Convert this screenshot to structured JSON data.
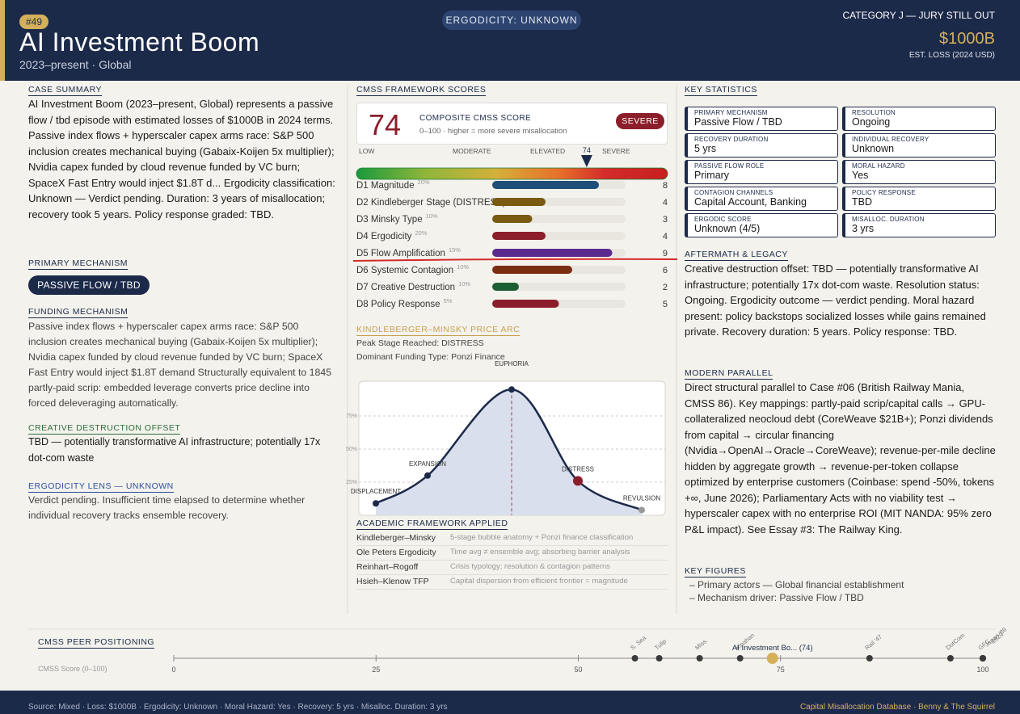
{
  "header": {
    "badge": "#49",
    "title": "AI Investment Boom",
    "subtitle": "2023–present · Global",
    "ergodicity_pill": "ERGODICITY: UNKNOWN",
    "category": "CATEGORY J — JURY STILL OUT",
    "loss": "$1000B",
    "loss_note": "EST. LOSS (2024 USD)"
  },
  "left": {
    "case_summary": {
      "heading": "CASE SUMMARY",
      "text": "AI Investment Boom (2023–present, Global) represents a passive flow / tbd episode with estimated losses of $1000B in 2024 terms. Passive index flows + hyperscaler capex arms race: S&P 500 inclusion creates mechanical buying (Gabaix-Koijen 5x multiplier); Nvidia capex funded by cloud revenue funded by VC burn; SpaceX Fast Entry would inject $1.8T d... Ergodicity classification: Unknown — Verdict pending. Duration: 3 years of misallocation; recovery took 5 years. Policy response graded: TBD."
    },
    "primary_mechanism": {
      "heading": "PRIMARY MECHANISM",
      "tag": "PASSIVE FLOW / TBD"
    },
    "funding_mechanism": {
      "heading": "FUNDING MECHANISM",
      "text": "Passive index flows + hyperscaler capex arms race: S&P 500 inclusion creates mechanical buying (Gabaix-Koijen 5x multiplier); Nvidia capex funded by cloud revenue funded by VC burn; SpaceX Fast Entry would inject $1.8T demand Structurally equivalent to 1845 partly-paid scrip: embedded leverage converts price decline into forced deleveraging automatically."
    },
    "creative_destruction": {
      "heading": "CREATIVE DESTRUCTION OFFSET",
      "text": "TBD — potentially transformative AI infrastructure; potentially 17x dot-com waste"
    },
    "ergodicity_lens": {
      "heading": "ERGODICITY LENS — UNKNOWN",
      "text": "Verdict pending. Insufficient time elapsed to determine whether individual recovery tracks ensemble recovery."
    }
  },
  "scores": {
    "heading": "CMSS FRAMEWORK SCORES",
    "composite": {
      "score": 74,
      "title": "COMPOSITE CMSS SCORE",
      "note": "0–100 · higher = more severe misallocation",
      "rating": "SEVERE",
      "range": [
        0,
        100
      ],
      "gauge_labels": [
        "LOW",
        "MODERATE",
        "ELEVATED",
        "SEVERE"
      ]
    },
    "dimensions": {
      "xlim": [
        0,
        10
      ],
      "items": [
        {
          "name": "D1 Magnitude",
          "weight": "20%",
          "value": 8,
          "color": "#1f4e79"
        },
        {
          "name": "D2 Kindleberger Stage (DISTRESS)",
          "weight": null,
          "value": 4,
          "color": "#7a5a10"
        },
        {
          "name": "D3 Minsky Type",
          "weight": "10%",
          "value": 3,
          "color": "#7a5a10"
        },
        {
          "name": "D4 Ergodicity",
          "weight": "20%",
          "value": 4,
          "color": "#8b1e2a"
        },
        {
          "name": "D5 Flow Amplification",
          "weight": "15%",
          "value": 9,
          "color": "#5b2a8e"
        },
        {
          "name": "D6 Systemic Contagion",
          "weight": "10%",
          "value": 6,
          "color": "#7a2e12"
        },
        {
          "name": "D7 Creative Destruction",
          "weight": "10%",
          "value": 2,
          "color": "#1e5e34"
        },
        {
          "name": "D8 Policy Response",
          "weight": "5%",
          "value": 5,
          "color": "#8b1e2a"
        }
      ]
    }
  },
  "arc": {
    "heading": "KINDLEBERGER–MINSKY PRICE ARC",
    "peak_stage": "Peak Stage Reached: DISTRESS",
    "funding_type": "Dominant Funding Type: Ponzi Finance",
    "ylim": [
      0,
      100
    ],
    "yticks": [
      {
        "value": 25,
        "label": "25%"
      },
      {
        "value": 50,
        "label": "50%"
      },
      {
        "value": 75,
        "label": "75%"
      }
    ],
    "stages": [
      {
        "name": "DISPLACEMENT",
        "value": 9,
        "color": "#1c2a4a"
      },
      {
        "name": "EXPANSION",
        "value": 30,
        "color": "#1c2a4a"
      },
      {
        "name": "EUPHORIA",
        "value": 95,
        "color": "#1c2a4a"
      },
      {
        "name": "DISTRESS",
        "value": 26,
        "color": "#8b1e2a"
      },
      {
        "name": "REVULSION",
        "value": 4,
        "color": "#999999"
      }
    ]
  },
  "academic": {
    "heading": "ACADEMIC FRAMEWORK APPLIED",
    "rows": [
      {
        "name": "Kindleberger–Minsky",
        "desc": "5-stage bubble anatomy + Ponzi finance classification"
      },
      {
        "name": "Ole Peters Ergodicity",
        "desc": "Time avg ≠ ensemble avg; absorbing barrier analysis"
      },
      {
        "name": "Reinhart–Rogoff",
        "desc": "Crisis typology; resolution & contagion patterns"
      },
      {
        "name": "Hsieh–Klenow TFP",
        "desc": "Capital dispersion from efficient frontier = magnitude"
      }
    ]
  },
  "stats": {
    "heading": "KEY STATISTICS",
    "items": [
      {
        "label": "PRIMARY MECHANISM",
        "value": "Passive Flow / TBD"
      },
      {
        "label": "RESOLUTION",
        "value": "Ongoing"
      },
      {
        "label": "RECOVERY DURATION",
        "value": "5 yrs"
      },
      {
        "label": "INDIVIDUAL RECOVERY",
        "value": "Unknown"
      },
      {
        "label": "PASSIVE FLOW ROLE",
        "value": "Primary"
      },
      {
        "label": "MORAL HAZARD",
        "value": "Yes"
      },
      {
        "label": "CONTAGION CHANNELS",
        "value": "Capital Account, Banking"
      },
      {
        "label": "POLICY RESPONSE",
        "value": "TBD"
      },
      {
        "label": "ERGODIC SCORE",
        "value": "Unknown (4/5)"
      },
      {
        "label": "MISALLOC. DURATION",
        "value": "3 yrs"
      }
    ]
  },
  "right": {
    "aftermath": {
      "heading": "AFTERMATH & LEGACY",
      "text": "Creative destruction offset: TBD — potentially transformative AI infrastructure; potentially 17x dot-com waste. Resolution status: Ongoing. Ergodicity outcome — verdict pending. Moral hazard present: policy backstops socialized losses while gains remained private. Recovery duration: 5 years. Policy response: TBD."
    },
    "modern_parallel": {
      "heading": "MODERN PARALLEL",
      "text": "Direct structural parallel to Case #06 (British Railway Mania, CMSS 86). Key mappings: partly-paid scrip/capital calls → GPU-collateralized neocloud debt (CoreWeave $21B+); Ponzi dividends from capital → circular financing (Nvidia→OpenAI→Oracle→CoreWeave); revenue-per-mile decline hidden by aggregate growth → revenue-per-token collapse optimized by enterprise customers (Coinbase: spend -50%, tokens +∞, June 2026); Parliamentary Acts with no viability test → hyperscaler capex with no enterprise ROI (MIT NANDA: 95% zero P&L impact). See Essay #3: The Railway King."
    },
    "key_figures": {
      "heading": "KEY FIGURES",
      "items": [
        "– Primary actors — Global financial establishment",
        "– Mechanism driver: Passive Flow / TBD"
      ]
    }
  },
  "peers": {
    "heading": "CMSS PEER POSITIONING",
    "axis_label": "CMSS Score (0–100)",
    "xlim": [
      0,
      100
    ],
    "xticks": [
      0,
      25,
      50,
      75,
      100
    ],
    "points": [
      {
        "name": "S. Sea",
        "value": 57,
        "color": "#3a3a3a"
      },
      {
        "name": "Tulip",
        "value": 60,
        "color": "#3a3a3a"
      },
      {
        "name": "Miss.",
        "value": 65,
        "color": "#3a3a3a"
      },
      {
        "name": "Kinahan",
        "value": 70,
        "color": "#3a3a3a"
      },
      {
        "name": "AI Investment Bo... (74)",
        "value": 74,
        "color": "#d4b05a",
        "current": true
      },
      {
        "name": "Rail '47",
        "value": 86,
        "color": "#3a3a3a"
      },
      {
        "name": "DotCom",
        "value": 96,
        "color": "#3a3a3a"
      },
      {
        "name": "GFC",
        "value": 100,
        "color": "#3a3a3a"
      },
      {
        "name": "Japan '89",
        "value": 100,
        "color": "#3a3a3a"
      },
      {
        "name": "1929",
        "value": 100,
        "color": "#3a3a3a"
      }
    ]
  },
  "footer": {
    "left": "Source: Mixed · Loss: $1000B · Ergodicity: Unknown · Moral Hazard: Yes · Recovery: 5 yrs · Misalloc. Duration: 3 yrs",
    "right": "Capital Misallocation Database · Benny & The Squirrel"
  }
}
